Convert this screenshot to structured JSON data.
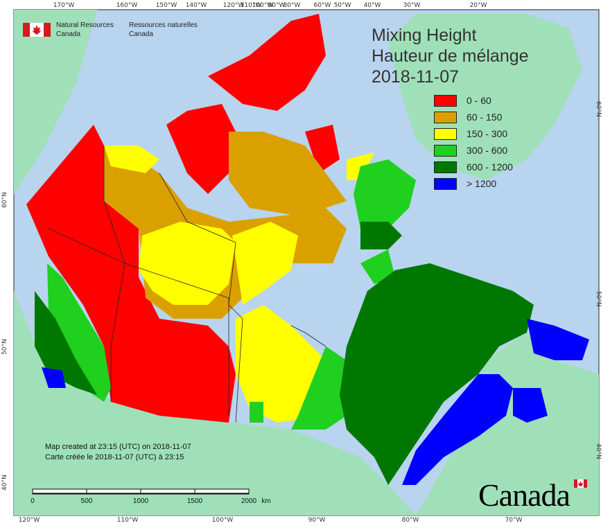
{
  "agency": {
    "name_en": "Natural Resources\nCanada",
    "name_en_line1": "Natural Resources",
    "name_en_line2": "Canada",
    "name_fr_line1": "Ressources naturelles",
    "name_fr_line2": "Canada"
  },
  "title": {
    "line1": "Mixing Height",
    "line2": "Hauteur de mélange",
    "date": "2018-11-07"
  },
  "legend": [
    {
      "label": "0 - 60",
      "color": "#ff0000"
    },
    {
      "label": "60 - 150",
      "color": "#daa000"
    },
    {
      "label": "150 - 300",
      "color": "#ffff00"
    },
    {
      "label": "300 - 600",
      "color": "#1fd01f"
    },
    {
      "label": "600 - 1200",
      "color": "#007800"
    },
    {
      "label": "> 1200",
      "color": "#0000ff"
    }
  ],
  "credits": {
    "line_en": "Map created at 23:15 (UTC) on 2018-11-07",
    "line_fr": "Carte créée le 2018-11-07 (UTC) à 23:15"
  },
  "scale": {
    "labels": [
      "0",
      "500",
      "1000",
      "1500",
      "2000"
    ],
    "unit": "km"
  },
  "ticks_top": [
    "170°W",
    "160°W",
    "150°W",
    "140°W",
    "120°W",
    "110°W",
    "100°W",
    "90°W",
    "80°W",
    "60°W",
    "50°W",
    "40°W",
    "30°W",
    "20°W"
  ],
  "ticks_bottom": [
    "120°W",
    "110°W",
    "100°W",
    "90°W",
    "80°W",
    "70°W"
  ],
  "ticks_left": [
    "60°N",
    "50°N",
    "40°N"
  ],
  "ticks_right": [
    "60°N",
    "50°N",
    "40°N"
  ],
  "wordmark": "Canada",
  "colors": {
    "ocean": "#b8d4ee",
    "land_outside": "#9fe0b8",
    "border": "#000000"
  }
}
